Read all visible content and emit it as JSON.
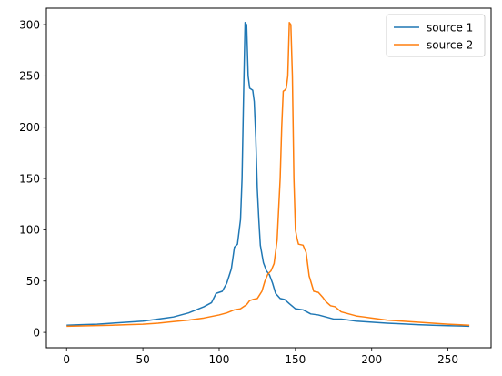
{
  "chart_data": {
    "type": "line",
    "title": "",
    "xlabel": "",
    "ylabel": "",
    "xlim": [
      -13.25,
      278.25
    ],
    "ylim": [
      -15,
      316
    ],
    "x_ticks": [
      0,
      50,
      100,
      150,
      200,
      250
    ],
    "y_ticks": [
      0,
      50,
      100,
      150,
      200,
      250,
      300
    ],
    "grid": false,
    "legend_position": "top-right",
    "series": [
      {
        "name": "source 1",
        "color": "#1f77b4",
        "points": [
          [
            0,
            7
          ],
          [
            10,
            7.5
          ],
          [
            20,
            8
          ],
          [
            30,
            9
          ],
          [
            40,
            10
          ],
          [
            50,
            11
          ],
          [
            55,
            12
          ],
          [
            60,
            13
          ],
          [
            65,
            14
          ],
          [
            70,
            15
          ],
          [
            75,
            17
          ],
          [
            80,
            19
          ],
          [
            85,
            22
          ],
          [
            90,
            25
          ],
          [
            95,
            29
          ],
          [
            98,
            38
          ],
          [
            102,
            40
          ],
          [
            105,
            48
          ],
          [
            108,
            62
          ],
          [
            110,
            83
          ],
          [
            112,
            86
          ],
          [
            114,
            110
          ],
          [
            115,
            150
          ],
          [
            116,
            230
          ],
          [
            117,
            302
          ],
          [
            118,
            300
          ],
          [
            119,
            250
          ],
          [
            120,
            238
          ],
          [
            122,
            236
          ],
          [
            123,
            225
          ],
          [
            124,
            190
          ],
          [
            125,
            140
          ],
          [
            126,
            110
          ],
          [
            127,
            85
          ],
          [
            129,
            68
          ],
          [
            131,
            60
          ],
          [
            133,
            56
          ],
          [
            135,
            48
          ],
          [
            137,
            38
          ],
          [
            140,
            33
          ],
          [
            143,
            32
          ],
          [
            146,
            28
          ],
          [
            150,
            23
          ],
          [
            155,
            22
          ],
          [
            160,
            18
          ],
          [
            165,
            17
          ],
          [
            170,
            15
          ],
          [
            175,
            13
          ],
          [
            180,
            13
          ],
          [
            190,
            11
          ],
          [
            200,
            10
          ],
          [
            210,
            9
          ],
          [
            220,
            8.3
          ],
          [
            230,
            7.5
          ],
          [
            240,
            7
          ],
          [
            250,
            6.5
          ],
          [
            264,
            6
          ]
        ]
      },
      {
        "name": "source 2",
        "color": "#ff7f0e",
        "points": [
          [
            0,
            6
          ],
          [
            10,
            6.3
          ],
          [
            20,
            6.6
          ],
          [
            30,
            7
          ],
          [
            40,
            7.5
          ],
          [
            50,
            8
          ],
          [
            60,
            9
          ],
          [
            70,
            10.5
          ],
          [
            80,
            12
          ],
          [
            90,
            14
          ],
          [
            100,
            17
          ],
          [
            105,
            19
          ],
          [
            110,
            22
          ],
          [
            114,
            23
          ],
          [
            118,
            27
          ],
          [
            120,
            31
          ],
          [
            122,
            32
          ],
          [
            125,
            33
          ],
          [
            128,
            40
          ],
          [
            130,
            50
          ],
          [
            132,
            57
          ],
          [
            134,
            60
          ],
          [
            136,
            67
          ],
          [
            138,
            90
          ],
          [
            140,
            150
          ],
          [
            141,
            200
          ],
          [
            142,
            235
          ],
          [
            143,
            236
          ],
          [
            144,
            238
          ],
          [
            145,
            250
          ],
          [
            146,
            302
          ],
          [
            147,
            300
          ],
          [
            148,
            250
          ],
          [
            149,
            150
          ],
          [
            150,
            100
          ],
          [
            151,
            92
          ],
          [
            152,
            86
          ],
          [
            155,
            85
          ],
          [
            157,
            78
          ],
          [
            159,
            55
          ],
          [
            162,
            40
          ],
          [
            165,
            39
          ],
          [
            168,
            34
          ],
          [
            170,
            30
          ],
          [
            173,
            26
          ],
          [
            176,
            25
          ],
          [
            180,
            20
          ],
          [
            185,
            18
          ],
          [
            190,
            16
          ],
          [
            195,
            15
          ],
          [
            200,
            14
          ],
          [
            205,
            13
          ],
          [
            210,
            12
          ],
          [
            220,
            11
          ],
          [
            230,
            10
          ],
          [
            240,
            9
          ],
          [
            250,
            8
          ],
          [
            264,
            7
          ]
        ]
      }
    ]
  }
}
